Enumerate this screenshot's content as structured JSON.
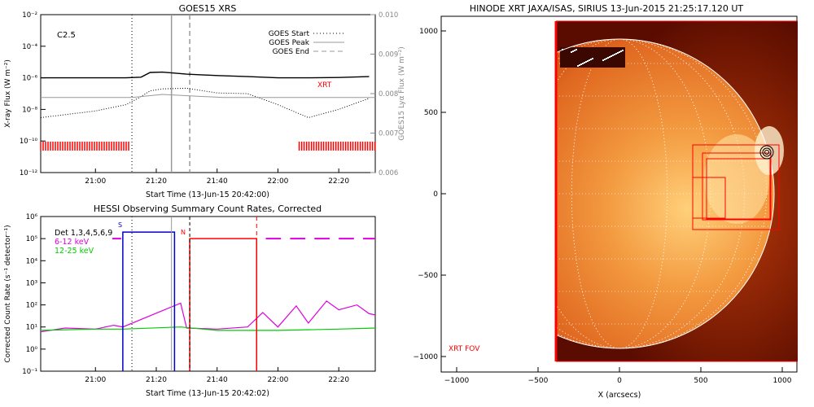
{
  "goes": {
    "title": "GOES15 XRS",
    "flare_class": "C2.5",
    "ylabel_left": "X-ray Flux (W m⁻²)",
    "ylabel_right": "GOES15 Lyα Flux (W m⁻²)",
    "xlabel": "Start Time (13-Jun-15 20:42:00)",
    "xrt_label": "XRT",
    "legend": [
      "GOES Start",
      "GOES Peak",
      "GOES End"
    ]
  },
  "hessi": {
    "title": "HESSI Observing Summary Count Rates, Corrected",
    "ylabel": "Corrected Count Rate (s⁻¹ detector⁻¹)",
    "xlabel": "Start Time (13-Jun-15 20:42:02)",
    "legend": [
      "Det 1,3,4,5,6,9",
      "6-12 keV",
      "12-25 keV"
    ],
    "flag_s": "S",
    "flag_n": "N"
  },
  "xrt": {
    "title": "HINODE XRT JAXA/ISAS, SIRIUS 13-Jun-2015 21:25:17.120 UT",
    "xlabel": "X (arcsecs)",
    "fov_label": "XRT FOV"
  },
  "colors": {
    "xrt_mark": "#ff0000",
    "hessi_6_12": "#dd00dd",
    "hessi_12_25": "#00cc00",
    "attenuator": "#0000cc"
  },
  "chart_data": [
    {
      "type": "line",
      "title": "GOES15 XRS",
      "x_unit": "UT",
      "xlim": [
        "20:42",
        "22:32"
      ],
      "xticks": [
        "21:00",
        "21:20",
        "21:40",
        "22:00",
        "22:20"
      ],
      "ylabel": "X-ray Flux (W m⁻²)",
      "yscale": "log",
      "ylim": [
        1e-12,
        0.01
      ],
      "yticks": [
        "10⁻¹²",
        "10⁻¹⁰",
        "10⁻⁸",
        "10⁻⁶",
        "10⁻⁴",
        "10⁻²"
      ],
      "y2label": "GOES15 Lyα Flux (W m⁻²)",
      "y2lim": [
        0.006,
        0.01
      ],
      "y2ticks": [
        "0.006",
        "0.007",
        "0.008",
        "0.009",
        "0.010"
      ],
      "series": [
        {
          "x": [
            "20:42",
            "21:00",
            "21:10",
            "21:15",
            "21:18",
            "21:22",
            "21:26",
            "21:30",
            "21:40",
            "21:50",
            "22:00",
            "22:10",
            "22:20",
            "22:30"
          ],
          "values": [
            1e-06,
            1e-06,
            1e-06,
            1.1e-06,
            2.2e-06,
            2.3e-06,
            2e-06,
            1.7e-06,
            1.4e-06,
            1.2e-06,
            1e-06,
            1e-06,
            1.05e-06,
            1.2e-06
          ]
        },
        {
          "x": [
            "20:42",
            "21:00",
            "21:10",
            "21:14",
            "21:18",
            "21:22",
            "21:30",
            "21:40",
            "21:50",
            "22:00",
            "22:10",
            "22:20",
            "22:30"
          ],
          "values": [
            3e-09,
            8e-09,
            2e-08,
            5e-08,
            1.5e-07,
            2e-07,
            2.2e-07,
            1.1e-07,
            1e-07,
            2e-08,
            3e-09,
            1e-08,
            5e-08
          ]
        },
        {
          "x": [
            "20:42",
            "21:12",
            "21:22",
            "21:42",
            "22:00",
            "22:32"
          ],
          "values": [
            0.0079,
            0.0079,
            0.00798,
            0.0079,
            0.0079,
            0.0079
          ]
        }
      ],
      "vertical_lines": {
        "GOES Start": "21:12",
        "GOES Peak": "21:25",
        "GOES End": "21:31"
      },
      "xrt_coverage": [
        [
          "20:42",
          "21:11"
        ],
        [
          "22:07",
          "22:32"
        ]
      ]
    },
    {
      "type": "line",
      "title": "HESSI Observing Summary Count Rates, Corrected",
      "x_unit": "UT",
      "xlim": [
        "20:42",
        "22:32"
      ],
      "xticks": [
        "21:00",
        "21:20",
        "21:40",
        "22:00",
        "22:20"
      ],
      "yscale": "log",
      "ylim": [
        0.1,
        1000000.0
      ],
      "yticks": [
        "10⁻¹",
        "10⁰",
        "10¹",
        "10²",
        "10³",
        "10⁴",
        "10⁵",
        "10⁶"
      ],
      "series": [
        {
          "name": "6-12 keV",
          "x": [
            "20:42",
            "20:50",
            "21:00",
            "21:06",
            "21:09",
            "21:28",
            "21:30",
            "21:40",
            "21:50",
            "21:55",
            "22:00",
            "22:06",
            "22:10",
            "22:16",
            "22:20",
            "22:26",
            "22:30",
            "22:32"
          ],
          "values": [
            6,
            9,
            8,
            12,
            10,
            120,
            9,
            8,
            10,
            45,
            10,
            90,
            15,
            150,
            60,
            100,
            40,
            35
          ]
        },
        {
          "name": "12-25 keV",
          "x": [
            "20:42",
            "21:00",
            "21:09",
            "21:28",
            "21:40",
            "22:00",
            "22:20",
            "22:32"
          ],
          "values": [
            7,
            8,
            8,
            10,
            7,
            7,
            8,
            9
          ]
        }
      ],
      "attenuator_state_level": 100000
    }
  ]
}
